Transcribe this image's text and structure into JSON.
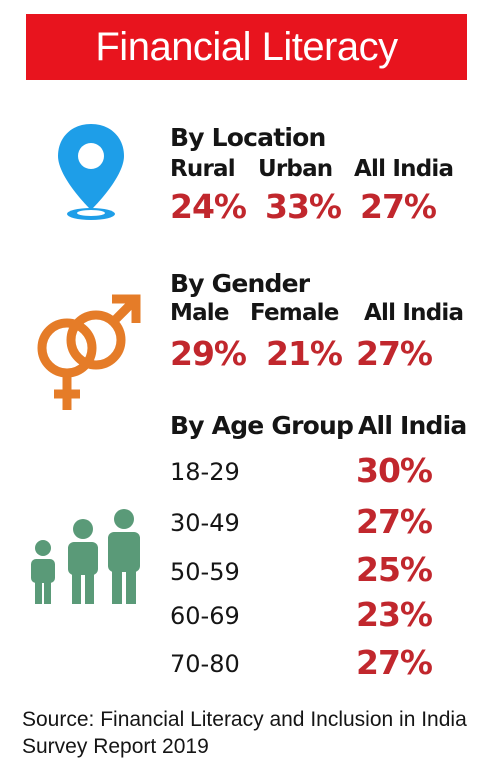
{
  "title": "Financial Literacy",
  "colors": {
    "banner": "#e8141e",
    "percent": "#c1272d",
    "location_icon": "#1e9ee8",
    "gender_icon": "#e57c28",
    "people_icon": "#5a9a78"
  },
  "icons": {
    "location": "map-pin-icon",
    "gender": "gender-symbols-icon",
    "people": "people-family-icon"
  },
  "chart_data": [
    {
      "type": "table",
      "title": "By Location",
      "categories": [
        "Rural",
        "Urban",
        "All India"
      ],
      "values": [
        24,
        33,
        27
      ],
      "display": [
        "24%",
        "33%",
        "27%"
      ]
    },
    {
      "type": "table",
      "title": "By Gender",
      "categories": [
        "Male",
        "Female",
        "All India"
      ],
      "values": [
        29,
        21,
        27
      ],
      "display": [
        "29%",
        "21%",
        "27%"
      ]
    },
    {
      "type": "table",
      "title": "By Age Group",
      "column_header": "All India",
      "categories": [
        "18-29",
        "30-49",
        "50-59",
        "60-69",
        "70-80"
      ],
      "values": [
        30,
        27,
        25,
        23,
        27
      ],
      "display": [
        "30%",
        "27%",
        "25%",
        "23%",
        "27%"
      ]
    }
  ],
  "source": "Source: Financial Literacy and Inclusion in India Survey Report 2019"
}
